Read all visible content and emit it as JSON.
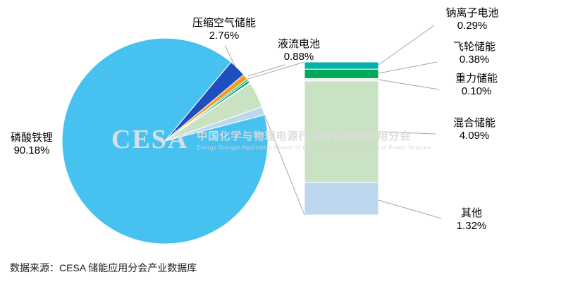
{
  "watermark": {
    "logo": "CESA",
    "line1": "中国化学与物理电源行业协会储能应用分会",
    "line2": "Energy Storage Application Branch of China Industrial Association of Power Sources"
  },
  "source_note": "数据来源：CESA 储能应用分会产业数据库",
  "chart_data": {
    "type": "pie",
    "subtype": "bar-of-pie",
    "title": "",
    "unit": "%",
    "legend": "none",
    "data_labels": "outside with leader lines",
    "slices": [
      {
        "id": "lfp",
        "name": "磷酸铁锂",
        "value": 90.18,
        "percent_label": "90.18%",
        "color": "#47C2F0",
        "in_bar": false
      },
      {
        "id": "compressed-air",
        "name": "压缩空气储能",
        "value": 2.76,
        "percent_label": "2.76%",
        "color": "#1D4FBE",
        "in_bar": false
      },
      {
        "id": "flow-battery",
        "name": "液流电池",
        "value": 0.88,
        "percent_label": "0.88%",
        "color": "#F59B20",
        "in_bar": false
      },
      {
        "id": "sodium-ion",
        "name": "钠离子电池",
        "value": 0.29,
        "percent_label": "0.29%",
        "color": "#00B2A9",
        "in_bar": true
      },
      {
        "id": "flywheel",
        "name": "飞轮储能",
        "value": 0.38,
        "percent_label": "0.38%",
        "color": "#00A859",
        "in_bar": true
      },
      {
        "id": "gravity",
        "name": "重力储能",
        "value": 0.1,
        "percent_label": "0.10%",
        "color": "#EDEDED",
        "in_bar": true
      },
      {
        "id": "hybrid",
        "name": "混合储能",
        "value": 4.09,
        "percent_label": "4.09%",
        "color": "#C9E2C4",
        "in_bar": true
      },
      {
        "id": "other",
        "name": "其他",
        "value": 1.32,
        "percent_label": "1.32%",
        "color": "#BDD7EE",
        "in_bar": true
      }
    ]
  }
}
